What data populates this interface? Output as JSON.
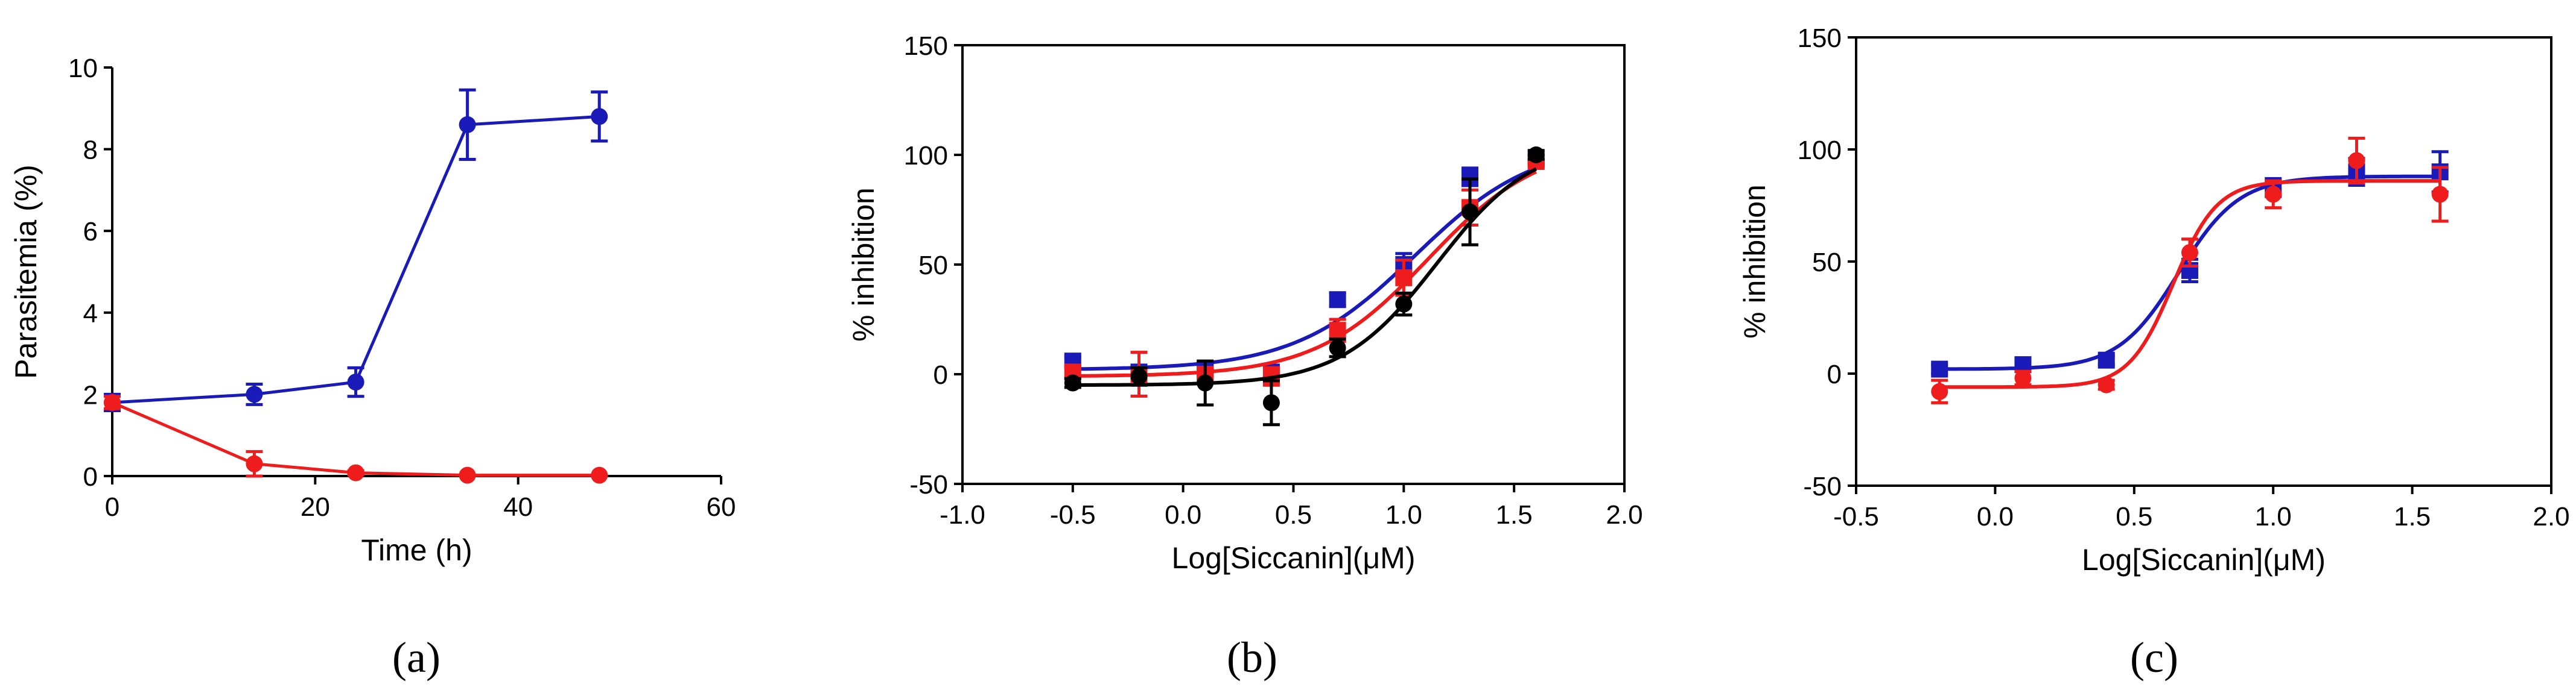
{
  "chart_data": [
    {
      "type": "line",
      "panel_label": "(a)",
      "xlabel": "Time (h)",
      "ylabel": "Parasitemia (%)",
      "xlim": [
        0,
        60
      ],
      "ylim": [
        0,
        10
      ],
      "xticks": [
        "0",
        "20",
        "40",
        "60"
      ],
      "yticks": [
        "0",
        "2",
        "4",
        "6",
        "8",
        "10"
      ],
      "series": [
        {
          "name": "blue",
          "color": "#1a1ab8",
          "marker": "circle",
          "x": [
            0,
            14,
            24,
            35,
            48
          ],
          "y": [
            1.8,
            2.0,
            2.3,
            8.6,
            8.8
          ],
          "err": [
            0.2,
            0.25,
            0.35,
            0.85,
            0.6
          ]
        },
        {
          "name": "red",
          "color": "#ee1c1c",
          "marker": "circle",
          "x": [
            0,
            14,
            24,
            35,
            48
          ],
          "y": [
            1.8,
            0.3,
            0.08,
            0.02,
            0.02
          ],
          "err": [
            0.15,
            0.3,
            0.05,
            0.0,
            0.0
          ]
        }
      ]
    },
    {
      "type": "scatter",
      "panel_label": "(b)",
      "xlabel": "Log[Siccanin](μM)",
      "ylabel": "% inhibition",
      "xlim": [
        -1.0,
        2.0
      ],
      "ylim": [
        -50,
        150
      ],
      "xticks": [
        "-1.0",
        "-0.5",
        "0.0",
        "0.5",
        "1.0",
        "1.5",
        "2.0"
      ],
      "yticks": [
        "-50",
        "0",
        "50",
        "100",
        "150"
      ],
      "series": [
        {
          "name": "blue",
          "color": "#1a1ab8",
          "marker": "square",
          "x": [
            -0.5,
            -0.2,
            0.1,
            0.4,
            0.7,
            1.0,
            1.3,
            1.6
          ],
          "y": [
            6,
            1,
            2,
            1,
            34,
            50,
            90,
            98
          ],
          "err": [
            2,
            2,
            2,
            2,
            3,
            5,
            4,
            2
          ],
          "fit": {
            "bottom": 2,
            "top": 106,
            "logEC50": 1.05,
            "hill": 1.6
          }
        },
        {
          "name": "red",
          "color": "#ee1c1c",
          "marker": "square",
          "x": [
            -0.5,
            -0.2,
            0.1,
            0.4,
            0.7,
            1.0,
            1.3,
            1.6
          ],
          "y": [
            1,
            0,
            0,
            -1,
            20,
            44,
            76,
            97
          ],
          "err": [
            2,
            10,
            2,
            4,
            5,
            8,
            8,
            2
          ],
          "fit": {
            "bottom": -1,
            "top": 106,
            "logEC50": 1.11,
            "hill": 1.7
          }
        },
        {
          "name": "black",
          "color": "#000000",
          "marker": "circle",
          "x": [
            -0.5,
            -0.2,
            0.1,
            0.4,
            0.7,
            1.0,
            1.3,
            1.6
          ],
          "y": [
            -4,
            -1,
            -4,
            -13,
            12,
            32,
            74,
            100
          ],
          "err": [
            2,
            4,
            10,
            10,
            4,
            5,
            15,
            2
          ],
          "fit": {
            "bottom": -5,
            "top": 106,
            "logEC50": 1.15,
            "hill": 2.0
          }
        }
      ]
    },
    {
      "type": "scatter",
      "panel_label": "(c)",
      "xlabel": "Log[Siccanin](μM)",
      "ylabel": "% inhibition",
      "xlim": [
        -0.5,
        2.0
      ],
      "ylim": [
        -50,
        150
      ],
      "xticks": [
        "-0.5",
        "0.0",
        "0.5",
        "1.0",
        "1.5",
        "2.0"
      ],
      "yticks": [
        "-50",
        "0",
        "50",
        "100",
        "150"
      ],
      "series": [
        {
          "name": "blue",
          "color": "#1a1ab8",
          "marker": "square",
          "x": [
            -0.2,
            0.1,
            0.4,
            0.7,
            1.0,
            1.3,
            1.6
          ],
          "y": [
            2,
            4,
            6,
            46,
            83,
            90,
            90
          ],
          "err": [
            2,
            3,
            2,
            5,
            4,
            6,
            9
          ],
          "fit": {
            "bottom": 2,
            "top": 88,
            "logEC50": 0.66,
            "hill": 4.0
          }
        },
        {
          "name": "red",
          "color": "#ee1c1c",
          "marker": "circle",
          "x": [
            -0.2,
            0.1,
            0.4,
            0.7,
            1.0,
            1.3,
            1.6
          ],
          "y": [
            -8,
            -2,
            -5,
            54,
            80,
            95,
            80
          ],
          "err": [
            5,
            3,
            2,
            6,
            6,
            10,
            12
          ],
          "fit": {
            "bottom": -6,
            "top": 86,
            "logEC50": 0.64,
            "hill": 5.5
          }
        }
      ]
    }
  ]
}
